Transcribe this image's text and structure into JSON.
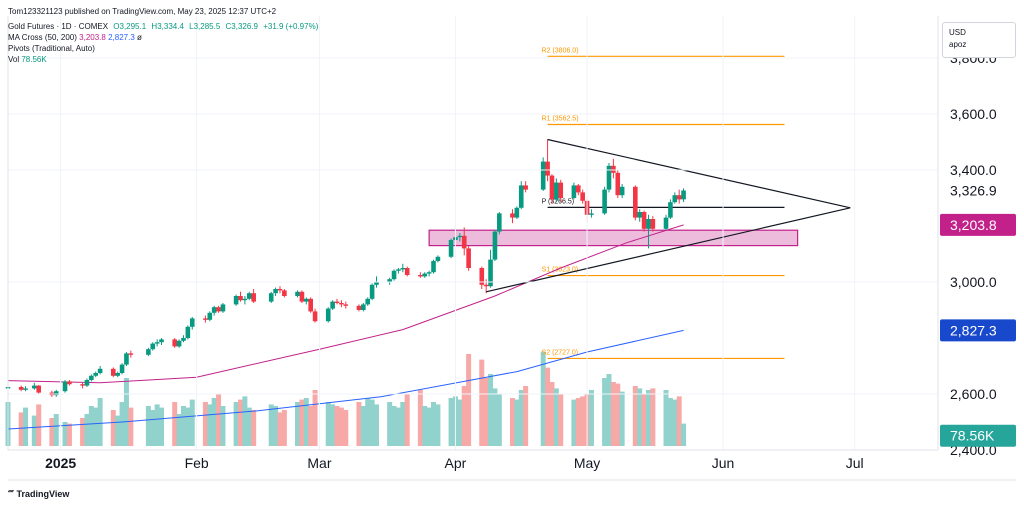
{
  "published": "Tom123321123 published on TradingView.com, May 23, 2025 12:37 UTC+2",
  "legend": {
    "symbol": "Gold Futures · 1D · COMEX",
    "open": "O3,295.1",
    "high": "H3,334.4",
    "low": "L3,285.5",
    "close": "C3,326.9",
    "change": "+31.9 (+0.97%)",
    "ma_label": "MA Cross (50, 200)",
    "ma50": "3,203.8",
    "ma200": "2,827.3",
    "ma_extra": "ø",
    "pivots_label": "Pivots (Traditional, Auto)",
    "vol_label": "Vol",
    "vol_value": "78.56K"
  },
  "currency_box": {
    "currency": "USD",
    "user": "apoz"
  },
  "tv_logo": "TradingView",
  "colors": {
    "up": "#089981",
    "down": "#f23645",
    "ma50": "#c2218a",
    "ma200": "#2962ff",
    "pivot": "#ff9800",
    "zone": "#c2218a",
    "vol_up": "#92d2cc",
    "vol_down": "#f7a9a7"
  },
  "chart_data": {
    "type": "candlestick",
    "title": "Gold Futures · 1D · COMEX",
    "xlabel": "",
    "ylabel": "",
    "x_range": [
      "2024-12-20",
      "2025-07-20"
    ],
    "ylim": [
      2400,
      3950
    ],
    "y_ticks": [
      {
        "value": 3800,
        "label": "3,800.0"
      },
      {
        "value": 3600,
        "label": "3,600.0"
      },
      {
        "value": 3400,
        "label": "3,400.0"
      },
      {
        "value": 3000,
        "label": "3,000.0"
      },
      {
        "value": 2600,
        "label": "2,600.0"
      },
      {
        "value": 2400,
        "label": "2,400.0"
      }
    ],
    "x_ticks": [
      {
        "date": "2025-01-01",
        "label": "2025",
        "bold": true
      },
      {
        "date": "2025-02-01",
        "label": "Feb",
        "bold": false
      },
      {
        "date": "2025-03-01",
        "label": "Mar",
        "bold": false
      },
      {
        "date": "2025-04-01",
        "label": "Apr",
        "bold": false
      },
      {
        "date": "2025-05-01",
        "label": "May",
        "bold": false
      },
      {
        "date": "2025-06-01",
        "label": "Jun",
        "bold": false
      },
      {
        "date": "2025-07-01",
        "label": "Jul",
        "bold": false
      }
    ],
    "price_badges": [
      {
        "value": 3326.9,
        "label": "3,326.9",
        "style": "plain"
      },
      {
        "value": 3203.8,
        "label": "3,203.8",
        "style": "ma50"
      },
      {
        "value": 2827.3,
        "label": "2,827.3",
        "style": "ma200"
      },
      {
        "value": 2400.0,
        "label": "78.56K",
        "style": "vol",
        "y_data": 2451
      }
    ],
    "pivots": [
      {
        "label": "R2 (3806.0)",
        "value": 3806.0
      },
      {
        "label": "R1 (3562.5)",
        "value": 3562.5
      },
      {
        "label": "P (3266.5)",
        "value": 3266.5
      },
      {
        "label": "S1 (3023.0)",
        "value": 3023.0
      },
      {
        "label": "S2 (2727.0)",
        "value": 2727.0
      }
    ],
    "pivot_start": "2025-04-22",
    "pivot_end": "2025-06-15",
    "zone": {
      "from": "2025-03-26",
      "to": "2025-06-18",
      "low": 3130,
      "high": 3185
    },
    "trendlines": [
      {
        "from": [
          "2025-04-22",
          3509
        ],
        "to": [
          "2025-06-30",
          3265
        ]
      },
      {
        "from": [
          "2025-04-08",
          2965
        ],
        "to": [
          "2025-06-30",
          3265
        ]
      }
    ],
    "candles": [
      [
        "2024-12-20",
        2620,
        2632,
        2605,
        2625
      ],
      [
        "2024-12-23",
        2625,
        2630,
        2610,
        2615
      ],
      [
        "2024-12-24",
        2615,
        2628,
        2610,
        2620
      ],
      [
        "2024-12-26",
        2620,
        2640,
        2615,
        2630
      ],
      [
        "2024-12-27",
        2630,
        2632,
        2600,
        2605
      ],
      [
        "2024-12-30",
        2605,
        2612,
        2590,
        2596
      ],
      [
        "2024-12-31",
        2596,
        2615,
        2590,
        2610
      ],
      [
        "2025-01-02",
        2610,
        2650,
        2605,
        2645
      ],
      [
        "2025-01-03",
        2645,
        2650,
        2630,
        2635
      ],
      [
        "2025-01-06",
        2635,
        2640,
        2620,
        2630
      ],
      [
        "2025-01-07",
        2630,
        2655,
        2625,
        2650
      ],
      [
        "2025-01-08",
        2650,
        2670,
        2645,
        2665
      ],
      [
        "2025-01-09",
        2665,
        2680,
        2660,
        2675
      ],
      [
        "2025-01-10",
        2675,
        2700,
        2670,
        2690
      ],
      [
        "2025-01-13",
        2690,
        2695,
        2660,
        2665
      ],
      [
        "2025-01-14",
        2665,
        2680,
        2660,
        2675
      ],
      [
        "2025-01-15",
        2675,
        2710,
        2670,
        2705
      ],
      [
        "2025-01-16",
        2705,
        2750,
        2700,
        2745
      ],
      [
        "2025-01-17",
        2745,
        2755,
        2730,
        2740
      ],
      [
        "2025-01-21",
        2740,
        2765,
        2735,
        2760
      ],
      [
        "2025-01-22",
        2760,
        2785,
        2755,
        2780
      ],
      [
        "2025-01-23",
        2780,
        2795,
        2770,
        2785
      ],
      [
        "2025-01-24",
        2785,
        2800,
        2775,
        2795
      ],
      [
        "2025-01-27",
        2795,
        2800,
        2765,
        2770
      ],
      [
        "2025-01-28",
        2770,
        2795,
        2765,
        2790
      ],
      [
        "2025-01-29",
        2790,
        2810,
        2785,
        2800
      ],
      [
        "2025-01-30",
        2800,
        2845,
        2795,
        2840
      ],
      [
        "2025-01-31",
        2840,
        2875,
        2830,
        2870
      ],
      [
        "2025-02-03",
        2870,
        2880,
        2855,
        2865
      ],
      [
        "2025-02-04",
        2865,
        2895,
        2860,
        2890
      ],
      [
        "2025-02-05",
        2890,
        2915,
        2880,
        2910
      ],
      [
        "2025-02-06",
        2910,
        2915,
        2890,
        2895
      ],
      [
        "2025-02-07",
        2895,
        2925,
        2890,
        2920
      ],
      [
        "2025-02-10",
        2920,
        2955,
        2915,
        2950
      ],
      [
        "2025-02-11",
        2950,
        2965,
        2930,
        2935
      ],
      [
        "2025-02-12",
        2935,
        2950,
        2920,
        2940
      ],
      [
        "2025-02-13",
        2940,
        2965,
        2935,
        2960
      ],
      [
        "2025-02-14",
        2960,
        2975,
        2925,
        2930
      ],
      [
        "2025-02-18",
        2930,
        2965,
        2925,
        2960
      ],
      [
        "2025-02-19",
        2960,
        2980,
        2950,
        2975
      ],
      [
        "2025-02-20",
        2975,
        2985,
        2960,
        2970
      ],
      [
        "2025-02-21",
        2970,
        2975,
        2945,
        2950
      ],
      [
        "2025-02-24",
        2950,
        2970,
        2945,
        2965
      ],
      [
        "2025-02-25",
        2965,
        2970,
        2925,
        2930
      ],
      [
        "2025-02-26",
        2930,
        2945,
        2920,
        2940
      ],
      [
        "2025-02-27",
        2940,
        2945,
        2890,
        2895
      ],
      [
        "2025-02-28",
        2895,
        2905,
        2855,
        2860
      ],
      [
        "2025-03-03",
        2860,
        2910,
        2855,
        2905
      ],
      [
        "2025-03-04",
        2905,
        2935,
        2900,
        2930
      ],
      [
        "2025-03-05",
        2930,
        2940,
        2920,
        2925
      ],
      [
        "2025-03-06",
        2925,
        2935,
        2910,
        2920
      ],
      [
        "2025-03-07",
        2920,
        2930,
        2905,
        2915
      ],
      [
        "2025-03-10",
        2915,
        2920,
        2895,
        2900
      ],
      [
        "2025-03-11",
        2900,
        2925,
        2895,
        2920
      ],
      [
        "2025-03-12",
        2920,
        2945,
        2915,
        2940
      ],
      [
        "2025-03-13",
        2940,
        2995,
        2935,
        2990
      ],
      [
        "2025-03-14",
        2990,
        3020,
        2980,
        3000
      ],
      [
        "2025-03-17",
        3000,
        3015,
        2990,
        3010
      ],
      [
        "2025-03-18",
        3010,
        3045,
        3005,
        3040
      ],
      [
        "2025-03-19",
        3040,
        3050,
        3030,
        3045
      ],
      [
        "2025-03-20",
        3045,
        3065,
        3035,
        3050
      ],
      [
        "2025-03-21",
        3050,
        3055,
        3020,
        3025
      ],
      [
        "2025-03-24",
        3025,
        3035,
        3015,
        3020
      ],
      [
        "2025-03-25",
        3020,
        3035,
        3015,
        3030
      ],
      [
        "2025-03-26",
        3030,
        3040,
        3020,
        3035
      ],
      [
        "2025-03-27",
        3035,
        3080,
        3030,
        3075
      ],
      [
        "2025-03-28",
        3075,
        3095,
        3070,
        3090
      ],
      [
        "2025-03-31",
        3090,
        3155,
        3085,
        3150
      ],
      [
        "2025-04-01",
        3150,
        3170,
        3140,
        3160
      ],
      [
        "2025-04-02",
        3160,
        3175,
        3145,
        3165
      ],
      [
        "2025-04-03",
        3165,
        3195,
        3095,
        3120
      ],
      [
        "2025-04-04",
        3120,
        3130,
        3040,
        3050
      ],
      [
        "2025-04-07",
        3050,
        3055,
        2975,
        2990
      ],
      [
        "2025-04-08",
        2990,
        3010,
        2960,
        2985
      ],
      [
        "2025-04-09",
        2985,
        3115,
        2980,
        3080
      ],
      [
        "2025-04-10",
        3080,
        3185,
        3075,
        3180
      ],
      [
        "2025-04-11",
        3180,
        3250,
        3170,
        3245
      ],
      [
        "2025-04-14",
        3245,
        3260,
        3210,
        3230
      ],
      [
        "2025-04-15",
        3230,
        3270,
        3225,
        3265
      ],
      [
        "2025-04-16",
        3265,
        3360,
        3260,
        3345
      ],
      [
        "2025-04-17",
        3345,
        3360,
        3320,
        3330
      ],
      [
        "2025-04-21",
        3330,
        3445,
        3325,
        3430
      ],
      [
        "2025-04-22",
        3430,
        3509,
        3360,
        3380
      ],
      [
        "2025-04-23",
        3380,
        3385,
        3280,
        3295
      ],
      [
        "2025-04-24",
        3295,
        3370,
        3285,
        3355
      ],
      [
        "2025-04-25",
        3355,
        3365,
        3285,
        3300
      ],
      [
        "2025-04-28",
        3300,
        3355,
        3295,
        3345
      ],
      [
        "2025-04-29",
        3345,
        3350,
        3310,
        3320
      ],
      [
        "2025-04-30",
        3320,
        3330,
        3280,
        3290
      ],
      [
        "2025-05-01",
        3290,
        3300,
        3215,
        3240
      ],
      [
        "2025-05-02",
        3240,
        3260,
        3230,
        3245
      ],
      [
        "2025-05-05",
        3245,
        3340,
        3240,
        3330
      ],
      [
        "2025-05-06",
        3330,
        3425,
        3320,
        3415
      ],
      [
        "2025-05-07",
        3415,
        3440,
        3370,
        3390
      ],
      [
        "2025-05-08",
        3390,
        3400,
        3300,
        3310
      ],
      [
        "2025-05-09",
        3310,
        3350,
        3300,
        3340
      ],
      [
        "2025-05-12",
        3340,
        3345,
        3220,
        3230
      ],
      [
        "2025-05-13",
        3230,
        3260,
        3215,
        3250
      ],
      [
        "2025-05-14",
        3250,
        3255,
        3180,
        3190
      ],
      [
        "2025-05-15",
        3190,
        3240,
        3120,
        3225
      ],
      [
        "2025-05-16",
        3225,
        3235,
        3180,
        3190
      ],
      [
        "2025-05-19",
        3190,
        3240,
        3185,
        3230
      ],
      [
        "2025-05-20",
        3230,
        3295,
        3225,
        3285
      ],
      [
        "2025-05-21",
        3285,
        3320,
        3280,
        3310
      ],
      [
        "2025-05-22",
        3310,
        3330,
        3280,
        3295
      ],
      [
        "2025-05-23",
        3295.1,
        3334.4,
        3285.5,
        3326.9
      ]
    ],
    "volume": [
      55,
      42,
      48,
      38,
      52,
      35,
      40,
      30,
      28,
      35,
      40,
      50,
      48,
      60,
      45,
      38,
      55,
      85,
      48,
      50,
      45,
      52,
      48,
      55,
      40,
      50,
      48,
      58,
      55,
      52,
      60,
      65,
      50,
      55,
      58,
      62,
      48,
      45,
      52,
      50,
      42,
      45,
      55,
      58,
      60,
      50,
      70,
      55,
      52,
      50,
      48,
      45,
      55,
      50,
      60,
      58,
      52,
      55,
      50,
      48,
      55,
      65,
      70,
      50,
      48,
      55,
      52,
      60,
      62,
      58,
      75,
      115,
      108,
      85,
      90,
      72,
      65,
      60,
      58,
      70,
      75,
      118,
      98,
      80,
      72,
      65,
      58,
      60,
      62,
      65,
      70,
      85,
      90,
      80,
      78,
      68,
      75,
      72,
      65,
      70,
      72,
      70,
      60,
      58,
      62,
      28
    ],
    "ma50": [
      [
        "2024-12-20",
        2648
      ],
      [
        "2025-01-10",
        2640
      ],
      [
        "2025-02-01",
        2660
      ],
      [
        "2025-03-01",
        2760
      ],
      [
        "2025-03-20",
        2830
      ],
      [
        "2025-04-10",
        2950
      ],
      [
        "2025-04-25",
        3050
      ],
      [
        "2025-05-10",
        3140
      ],
      [
        "2025-05-23",
        3203.8
      ]
    ],
    "ma200": [
      [
        "2024-12-20",
        2475
      ],
      [
        "2025-01-15",
        2500
      ],
      [
        "2025-02-15",
        2540
      ],
      [
        "2025-03-15",
        2590
      ],
      [
        "2025-04-15",
        2680
      ],
      [
        "2025-05-01",
        2750
      ],
      [
        "2025-05-23",
        2827.3
      ]
    ]
  }
}
